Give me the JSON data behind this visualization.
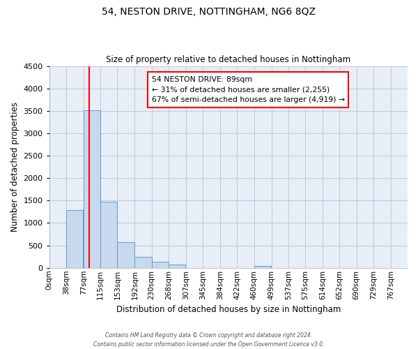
{
  "title": "54, NESTON DRIVE, NOTTINGHAM, NG6 8QZ",
  "subtitle": "Size of property relative to detached houses in Nottingham",
  "xlabel": "Distribution of detached houses by size in Nottingham",
  "ylabel": "Number of detached properties",
  "bar_color": "#c8d9ee",
  "bar_edge_color": "#5b9bd5",
  "grid_color": "#c0c8d8",
  "background_color": "#e8eef8",
  "tick_labels": [
    "0sqm",
    "38sqm",
    "77sqm",
    "115sqm",
    "153sqm",
    "192sqm",
    "230sqm",
    "268sqm",
    "307sqm",
    "345sqm",
    "384sqm",
    "422sqm",
    "460sqm",
    "499sqm",
    "537sqm",
    "575sqm",
    "614sqm",
    "652sqm",
    "690sqm",
    "729sqm",
    "767sqm"
  ],
  "bar_heights": [
    0,
    1290,
    3510,
    1470,
    575,
    245,
    130,
    70,
    0,
    0,
    0,
    0,
    50,
    0,
    0,
    0,
    0,
    0,
    0,
    0,
    0
  ],
  "ylim": [
    0,
    4500
  ],
  "yticks": [
    0,
    500,
    1000,
    1500,
    2000,
    2500,
    3000,
    3500,
    4000,
    4500
  ],
  "red_line_x": 89,
  "bin_width": 38,
  "annotation_text": "54 NESTON DRIVE: 89sqm\n← 31% of detached houses are smaller (2,255)\n67% of semi-detached houses are larger (4,919) →",
  "annotation_box_color": "white",
  "annotation_box_edge": "red",
  "footer_line1": "Contains HM Land Registry data © Crown copyright and database right 2024.",
  "footer_line2": "Contains public sector information licensed under the Open Government Licence v3.0."
}
